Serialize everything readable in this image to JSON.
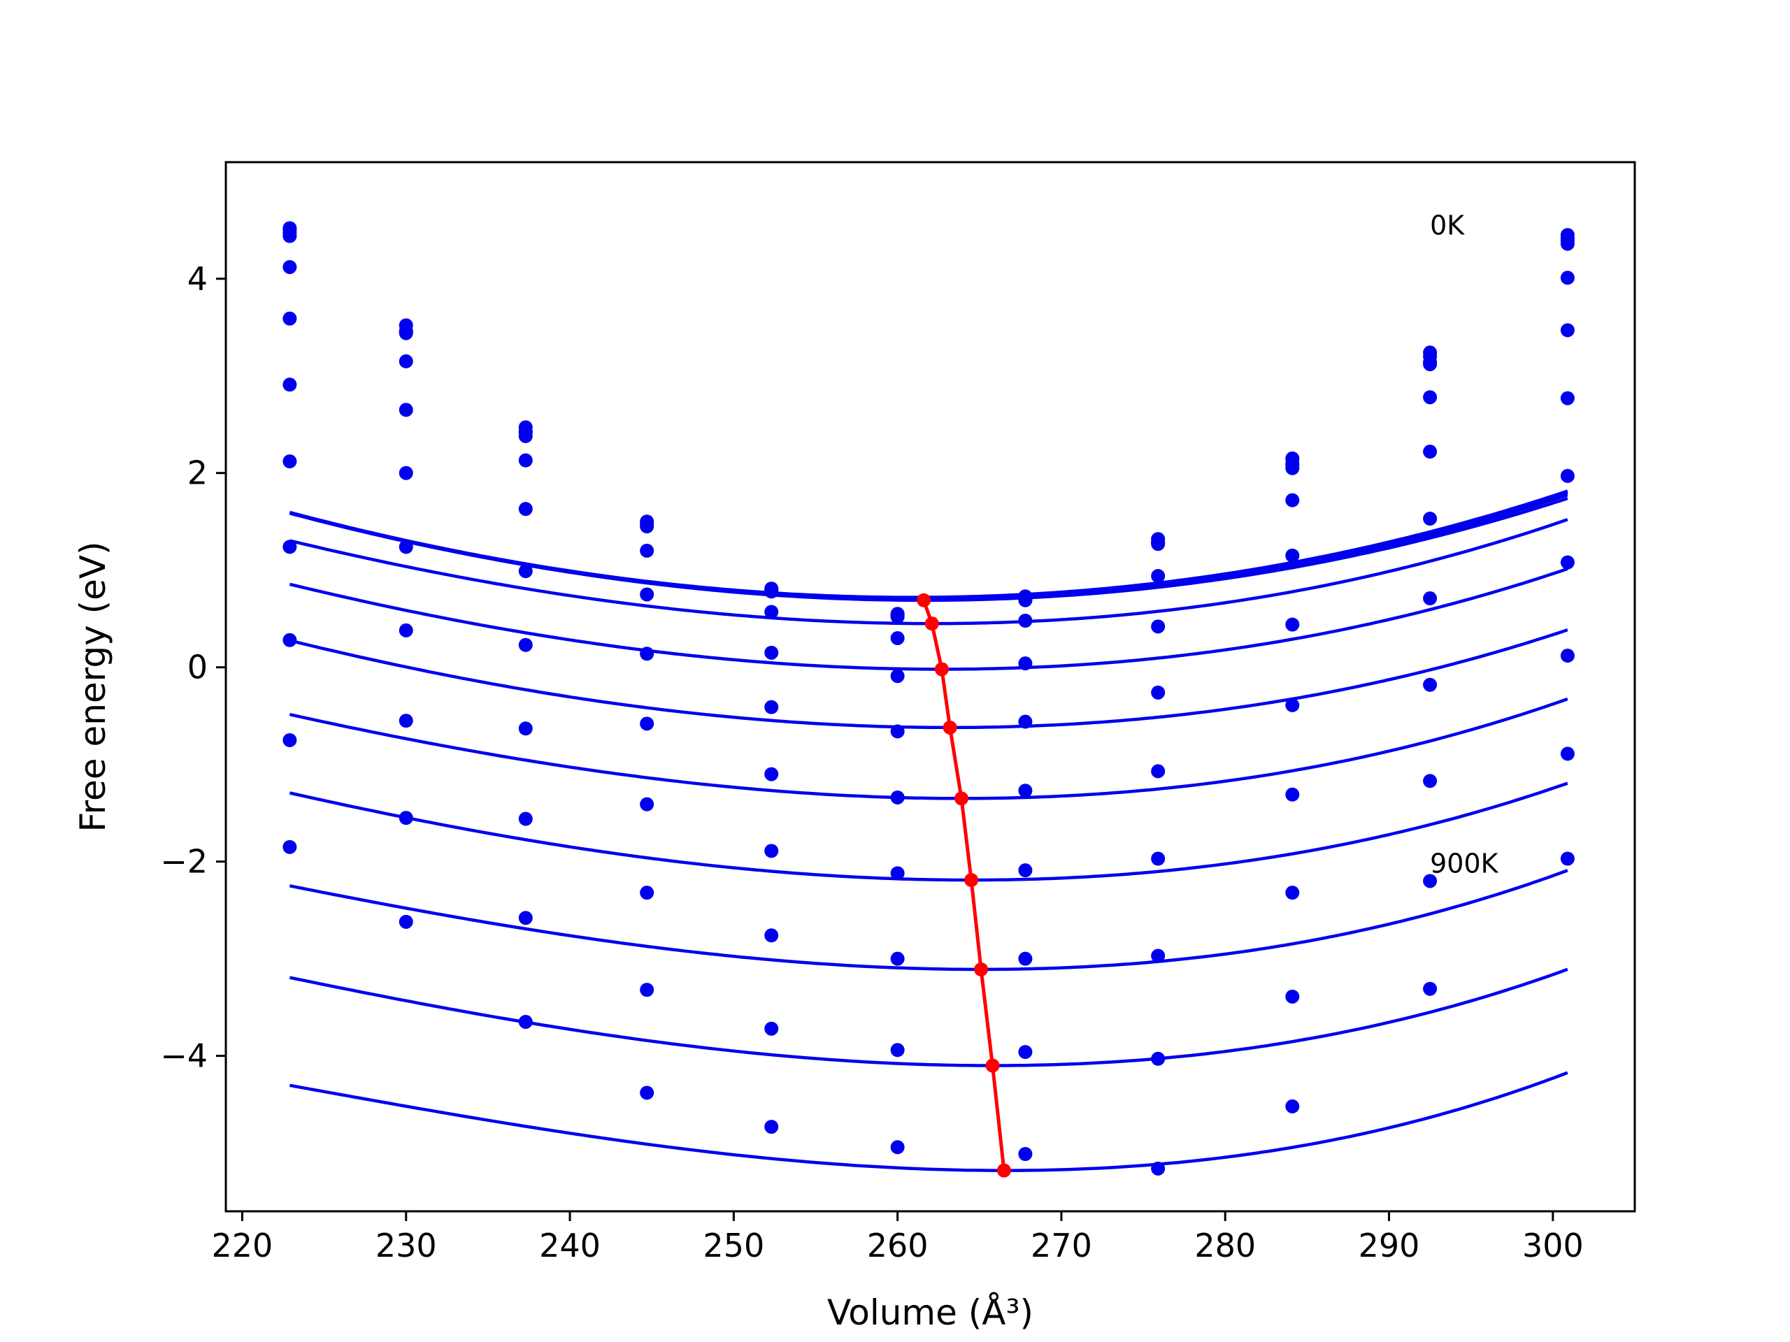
{
  "chart_data": {
    "type": "line",
    "xlabel": "Volume (Å³)",
    "ylabel": "Free energy (eV)",
    "xlim": [
      219,
      305
    ],
    "ylim": [
      -5.6,
      5.2
    ],
    "xticks": [
      220,
      230,
      240,
      250,
      260,
      270,
      280,
      290,
      300
    ],
    "yticks": [
      -4,
      -2,
      0,
      2,
      4
    ],
    "ytick_labels": [
      "−4",
      "−2",
      "0",
      "2",
      "4"
    ],
    "grid": false,
    "legend": "none",
    "annotations": [
      {
        "text": "0K",
        "x": 292.5,
        "y": 4.55
      },
      {
        "text": "900K",
        "x": 292.5,
        "y": -2.02
      }
    ],
    "sample_volumes": [
      222.9,
      230.0,
      237.3,
      244.7,
      252.3,
      260.0,
      267.8,
      275.9,
      284.1,
      292.5,
      300.9
    ],
    "series": [
      {
        "vmin": 260.9,
        "fmin": 0.72,
        "a": 0.000644,
        "b": 1e-06,
        "points": [
          4.47,
          3.52,
          2.43,
          1.5,
          0.81,
          0.55,
          0.73,
          1.32,
          2.15,
          3.24,
          4.45
        ]
      },
      {
        "vmin": 261.0,
        "fmin": 0.71,
        "a": 0.000643,
        "b": 1e-06,
        "points": [
          4.52,
          3.46,
          2.47,
          1.48,
          0.8,
          0.54,
          0.71,
          1.29,
          2.1,
          3.2,
          4.42
        ]
      },
      {
        "vmin": 261.2,
        "fmin": 0.7,
        "a": 0.000642,
        "b": 1e-06,
        "points": [
          4.44,
          3.45,
          2.38,
          1.45,
          0.78,
          0.53,
          0.69,
          1.27,
          2.05,
          3.14,
          4.36
        ]
      },
      {
        "vmin": 261.6,
        "fmin": 0.69,
        "a": 0.00064,
        "b": 1e-06,
        "points": [
          4.5,
          3.44,
          2.42,
          1.46,
          0.79,
          0.52,
          0.7,
          1.28,
          2.08,
          3.12,
          4.39
        ]
      },
      {
        "vmin": 262.1,
        "fmin": 0.45,
        "a": 0.000634,
        "b": 2e-06,
        "points": [
          4.12,
          3.15,
          2.13,
          1.2,
          0.57,
          0.3,
          0.48,
          0.94,
          1.72,
          2.78,
          4.01
        ]
      },
      {
        "vmin": 262.7,
        "fmin": -0.02,
        "a": 0.000632,
        "b": 2e-06,
        "points": [
          3.59,
          2.65,
          1.63,
          0.75,
          0.15,
          -0.09,
          0.04,
          0.42,
          1.15,
          2.22,
          3.47
        ]
      },
      {
        "vmin": 263.2,
        "fmin": -0.62,
        "a": 0.000632,
        "b": 2e-06,
        "points": [
          2.91,
          2.0,
          0.99,
          0.14,
          -0.41,
          -0.66,
          -0.56,
          -0.26,
          0.44,
          1.53,
          2.77
        ]
      },
      {
        "vmin": 263.9,
        "fmin": -1.35,
        "a": 0.000637,
        "b": 3e-06,
        "points": [
          2.12,
          1.24,
          0.23,
          -0.58,
          -1.1,
          -1.34,
          -1.27,
          -1.07,
          -0.39,
          0.71,
          1.97
        ]
      },
      {
        "vmin": 264.5,
        "fmin": -2.19,
        "a": 0.000643,
        "b": 3e-06,
        "points": [
          1.24,
          0.38,
          -0.63,
          -1.41,
          -1.89,
          -2.12,
          -2.09,
          -1.97,
          -1.31,
          -0.18,
          1.08
        ]
      },
      {
        "vmin": 265.1,
        "fmin": -3.11,
        "a": 0.000652,
        "b": 4e-06,
        "points": [
          0.28,
          -0.55,
          -1.56,
          -2.32,
          -2.76,
          -3.0,
          -3.0,
          -2.97,
          -2.32,
          -1.17,
          0.12
        ]
      },
      {
        "vmin": 265.8,
        "fmin": -4.1,
        "a": 0.000664,
        "b": 4e-06,
        "points": [
          -0.75,
          -1.55,
          -2.58,
          -3.32,
          -3.72,
          -3.94,
          -3.96,
          -4.03,
          -3.39,
          -2.2,
          -0.89
        ]
      },
      {
        "vmin": 266.5,
        "fmin": -5.18,
        "a": 0.000679,
        "b": 5e-06,
        "points": [
          -1.85,
          -2.62,
          -3.65,
          -4.38,
          -4.73,
          -4.94,
          -5.01,
          -5.16,
          -4.52,
          -3.31,
          -1.97
        ]
      }
    ],
    "minimum_locus": {
      "x": [
        261.6,
        262.1,
        262.7,
        263.2,
        263.9,
        264.5,
        265.1,
        265.8,
        266.5
      ],
      "y": [
        0.69,
        0.45,
        -0.02,
        -0.62,
        -1.35,
        -2.19,
        -3.11,
        -4.1,
        -5.18
      ]
    },
    "colors": {
      "curves": "#0000ee",
      "locus": "#ff0000",
      "axes": "#000000"
    }
  }
}
